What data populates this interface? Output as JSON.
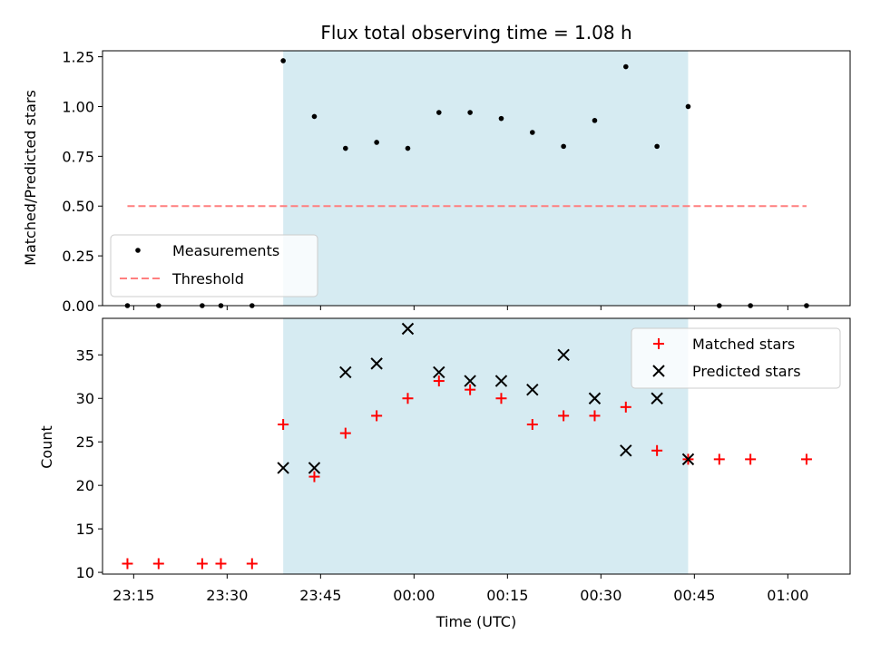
{
  "chart_data": [
    {
      "type": "scatter",
      "title": "Flux total observing time = 1.08 h",
      "xlabel": "",
      "ylabel": "Matched/Predicted stars",
      "ylim": [
        0,
        1.28
      ],
      "yticks": [
        "0.00",
        "0.25",
        "0.50",
        "0.75",
        "1.00",
        "1.25"
      ],
      "ytick_values": [
        0,
        0.25,
        0.5,
        0.75,
        1.0,
        1.25
      ],
      "legend_position": "lower-left",
      "shaded_span": {
        "start": "23:39",
        "end": "00:44",
        "color": "#add8e6"
      },
      "series": [
        {
          "name": "Measurements",
          "marker": "dot",
          "color": "#000000",
          "x": [
            "23:14",
            "23:19",
            "23:26",
            "23:29",
            "23:34",
            "23:39",
            "23:44",
            "23:49",
            "23:54",
            "23:59",
            "00:04",
            "00:09",
            "00:14",
            "00:19",
            "00:24",
            "00:29",
            "00:34",
            "00:39",
            "00:44",
            "00:49",
            "00:54",
            "01:03"
          ],
          "y": [
            0,
            0,
            0,
            0,
            0,
            1.23,
            0.95,
            0.79,
            0.82,
            0.79,
            0.97,
            0.97,
            0.94,
            0.87,
            0.8,
            0.93,
            1.2,
            0.8,
            1.0,
            0,
            0,
            0
          ]
        },
        {
          "name": "Threshold",
          "marker": "dashed-line",
          "color": "#ff7f7f",
          "x": [
            "23:14",
            "01:03"
          ],
          "y": [
            0.5,
            0.5
          ]
        }
      ]
    },
    {
      "type": "scatter",
      "title": "",
      "xlabel": "Time (UTC)",
      "ylabel": "Count",
      "ylim": [
        9.8,
        39.2
      ],
      "yticks": [
        "10",
        "15",
        "20",
        "25",
        "30",
        "35"
      ],
      "ytick_values": [
        10,
        15,
        20,
        25,
        30,
        35
      ],
      "xticks": [
        "23:15",
        "23:30",
        "23:45",
        "00:00",
        "00:15",
        "00:30",
        "00:45",
        "01:00"
      ],
      "xtick_values": [
        "23:15",
        "23:30",
        "23:45",
        "00:00",
        "00:15",
        "00:30",
        "00:45",
        "01:00"
      ],
      "xlim": [
        "23:10",
        "01:10"
      ],
      "legend_position": "top-right",
      "shaded_span": {
        "start": "23:39",
        "end": "00:44",
        "color": "#add8e6"
      },
      "series": [
        {
          "name": "Matched stars",
          "marker": "plus",
          "color": "#ff0000",
          "x": [
            "23:14",
            "23:19",
            "23:26",
            "23:29",
            "23:34",
            "23:39",
            "23:44",
            "23:49",
            "23:54",
            "23:59",
            "00:04",
            "00:09",
            "00:14",
            "00:19",
            "00:24",
            "00:29",
            "00:34",
            "00:39",
            "00:44",
            "00:49",
            "00:54",
            "01:03"
          ],
          "y": [
            11,
            11,
            11,
            11,
            11,
            27,
            21,
            26,
            28,
            30,
            32,
            31,
            30,
            27,
            28,
            28,
            29,
            24,
            23,
            23,
            23,
            23
          ]
        },
        {
          "name": "Predicted stars",
          "marker": "cross",
          "color": "#000000",
          "x": [
            "23:39",
            "23:44",
            "23:49",
            "23:54",
            "23:59",
            "00:04",
            "00:09",
            "00:14",
            "00:19",
            "00:24",
            "00:29",
            "00:34",
            "00:39",
            "00:44"
          ],
          "y": [
            22,
            22,
            33,
            34,
            38,
            33,
            32,
            32,
            31,
            35,
            30,
            24,
            30,
            23
          ]
        }
      ]
    }
  ]
}
